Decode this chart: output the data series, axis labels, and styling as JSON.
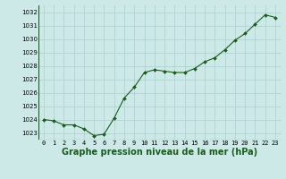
{
  "x": [
    0,
    1,
    2,
    3,
    4,
    5,
    6,
    7,
    8,
    9,
    10,
    11,
    12,
    13,
    14,
    15,
    16,
    17,
    18,
    19,
    20,
    21,
    22,
    23
  ],
  "y": [
    1024.0,
    1023.9,
    1023.6,
    1023.6,
    1023.3,
    1022.8,
    1022.9,
    1024.1,
    1025.6,
    1026.4,
    1027.5,
    1027.7,
    1027.6,
    1027.5,
    1027.5,
    1027.8,
    1028.3,
    1028.6,
    1029.2,
    1029.9,
    1030.4,
    1031.1,
    1031.8,
    1031.6
  ],
  "line_color": "#1a5c1a",
  "marker_color": "#1a5c1a",
  "bg_color": "#cce9e8",
  "grid_color": "#aacece",
  "xlabel": "Graphe pression niveau de la mer (hPa)",
  "ylim": [
    1022.5,
    1032.5
  ],
  "yticks": [
    1023,
    1024,
    1025,
    1026,
    1027,
    1028,
    1029,
    1030,
    1031,
    1032
  ],
  "xticks": [
    0,
    1,
    2,
    3,
    4,
    5,
    6,
    7,
    8,
    9,
    10,
    11,
    12,
    13,
    14,
    15,
    16,
    17,
    18,
    19,
    20,
    21,
    22,
    23
  ],
  "tick_label_fontsize": 5.0,
  "xlabel_fontsize": 7.0,
  "xlabel_color": "#1a5c1a"
}
